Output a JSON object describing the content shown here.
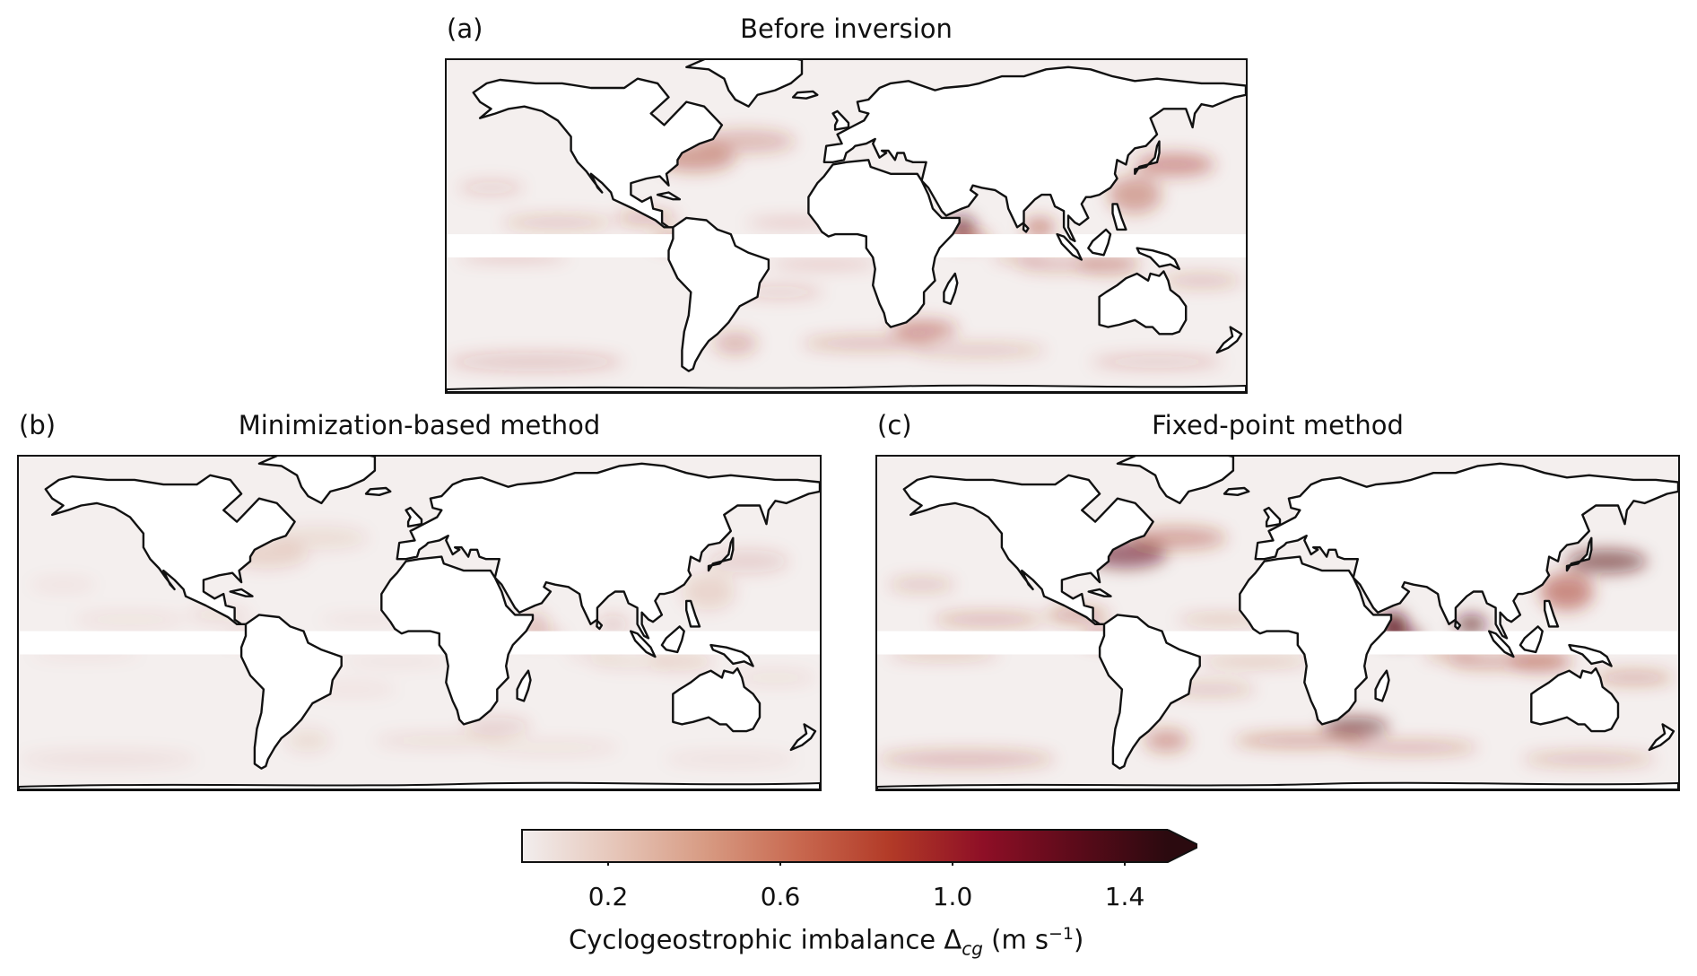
{
  "panels": [
    {
      "label": "(a)",
      "title": "Before inversion",
      "intensity": 1.0
    },
    {
      "label": "(b)",
      "title": "Minimization-based method",
      "intensity": 0.35
    },
    {
      "label": "(c)",
      "title": "Fixed-point method",
      "intensity": 1.35
    }
  ],
  "colorbar": {
    "ticks": [
      "0.2",
      "0.6",
      "1.0",
      "1.4"
    ],
    "tick_values": [
      0.2,
      0.6,
      1.0,
      1.4
    ],
    "range": [
      0,
      1.5
    ],
    "extend": "max",
    "colormap": [
      "#f2eeee",
      "#e6c6b9",
      "#d79a82",
      "#c8684f",
      "#b23a27",
      "#8e0f26",
      "#5c0b1a",
      "#2b0a0f"
    ],
    "label_text": "Cyclogeostrophic imbalance Δ",
    "label_subscript": "cg",
    "label_units_open": " (m s",
    "label_units_exp": "−1",
    "label_units_close": ")"
  },
  "colors": {
    "land": "#ffffff",
    "ocean_base": "#f4efee",
    "coastline": "#111111",
    "hotspot": "#a3301f",
    "hotspot_strong": "#5c0b1a"
  }
}
